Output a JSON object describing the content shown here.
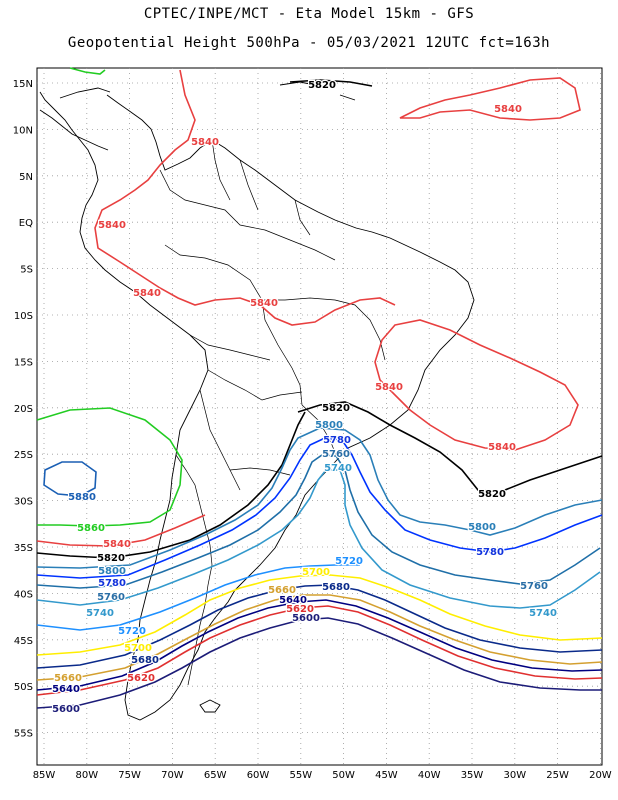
{
  "header": {
    "title_line1": "CPTEC/INPE/MCT  -   Eta Model 15km  - GFS",
    "title_line2": "Geopotential Height 500hPa  - 05/03/2021 12UTC fct=163h"
  },
  "axes": {
    "lat_labels": [
      "15N",
      "10N",
      "5N",
      "EQ",
      "5S",
      "10S",
      "15S",
      "20S",
      "25S",
      "30S",
      "35S",
      "40S",
      "45S",
      "50S",
      "55S"
    ],
    "lon_labels": [
      "85W",
      "80W",
      "75W",
      "70W",
      "65W",
      "60W",
      "55W",
      "50W",
      "45W",
      "40W",
      "35W",
      "30W",
      "25W",
      "20W"
    ],
    "grid": "dotted"
  },
  "colors": {
    "c5580": "#001a66",
    "c5600": "#1c1c78",
    "c5620": "#e03030",
    "c5640": "#000080",
    "c5660": "#d4a030",
    "c5680": "#0a2a8a",
    "c5700": "#ffee00",
    "c5720": "#1e90ff",
    "c5740": "#3399cc",
    "c5760": "#1f6fa8",
    "c5780": "#0033ff",
    "c5800": "#2a7fb8",
    "c5820": "#000000",
    "c5840": "#e84040",
    "c5860": "#22cc22",
    "coast": "#000000"
  },
  "contour_labels": [
    {
      "key": "l5820a",
      "text": "5820"
    },
    {
      "key": "l5840a",
      "text": "5840"
    },
    {
      "key": "l5840b",
      "text": "5840"
    },
    {
      "key": "l5840c",
      "text": "5840"
    },
    {
      "key": "l5840d",
      "text": "5840"
    },
    {
      "key": "l5840e",
      "text": "5840"
    },
    {
      "key": "l5840f",
      "text": "5840"
    },
    {
      "key": "l5840g",
      "text": "5840"
    },
    {
      "key": "l5820b",
      "text": "5820"
    },
    {
      "key": "l5800a",
      "text": "5800"
    },
    {
      "key": "l5780a",
      "text": "5780"
    },
    {
      "key": "l5760a",
      "text": "5760"
    },
    {
      "key": "l5740a",
      "text": "5740"
    },
    {
      "key": "l5880",
      "text": "5880"
    },
    {
      "key": "l5860",
      "text": "5860"
    },
    {
      "key": "l5840h",
      "text": "5840"
    },
    {
      "key": "l5820c",
      "text": "5820"
    },
    {
      "key": "l5800b",
      "text": "5800"
    },
    {
      "key": "l5780b",
      "text": "5780"
    },
    {
      "key": "l5760b",
      "text": "5760"
    },
    {
      "key": "l5740b",
      "text": "5740"
    },
    {
      "key": "l5720a",
      "text": "5720"
    },
    {
      "key": "l5700a",
      "text": "5700"
    },
    {
      "key": "l5680a",
      "text": "5680"
    },
    {
      "key": "l5660a",
      "text": "5660"
    },
    {
      "key": "l5640a",
      "text": "5640"
    },
    {
      "key": "l5600a",
      "text": "5600"
    },
    {
      "key": "l5720b",
      "text": "5720"
    },
    {
      "key": "l5700b",
      "text": "5700"
    },
    {
      "key": "l5680b",
      "text": "5680"
    },
    {
      "key": "l5660b",
      "text": "5660"
    },
    {
      "key": "l5620a",
      "text": "5620"
    },
    {
      "key": "l5640b",
      "text": "5640"
    },
    {
      "key": "l5600b",
      "text": "5600"
    },
    {
      "key": "l5820d",
      "text": "5820"
    },
    {
      "key": "l5800c",
      "text": "5800"
    },
    {
      "key": "l5780c",
      "text": "5780"
    },
    {
      "key": "l5760c",
      "text": "5760"
    },
    {
      "key": "l5740c",
      "text": "5740"
    },
    {
      "key": "l5620b",
      "text": "5620"
    }
  ]
}
